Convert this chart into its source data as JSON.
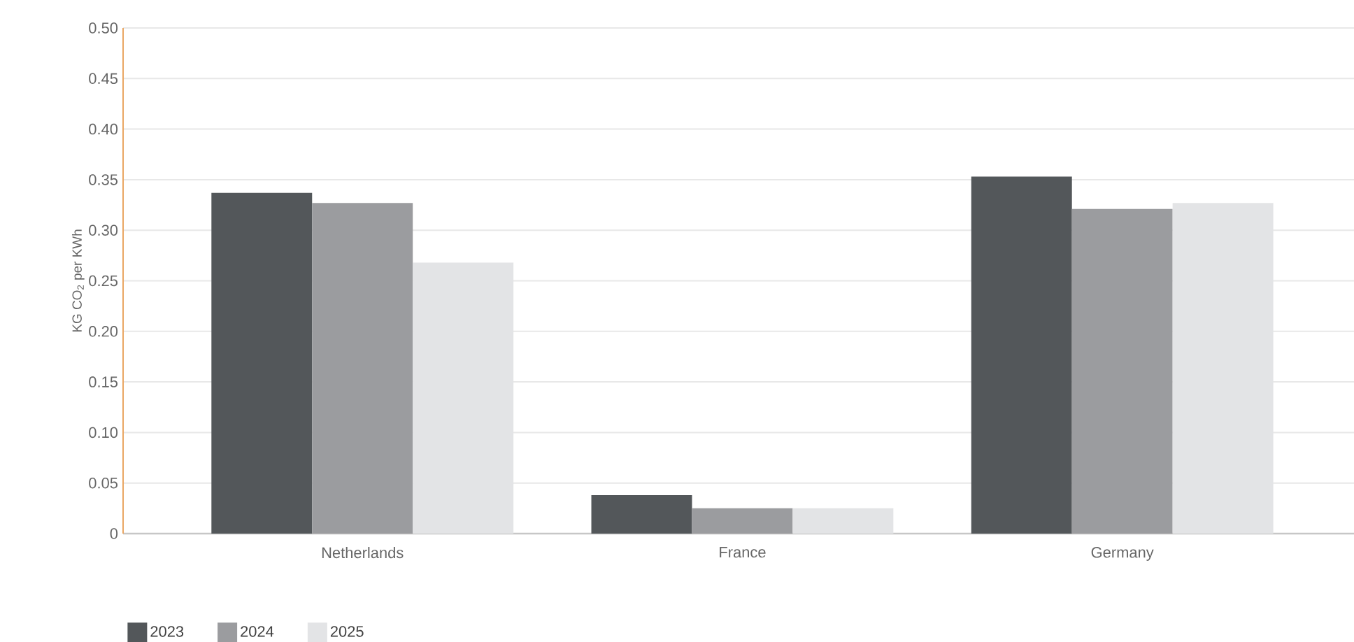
{
  "chart_data": {
    "type": "bar",
    "ylabel": "KG CO$_{2}$ per KWh",
    "categories": [
      "Netherlands",
      "France",
      "Germany"
    ],
    "series": [
      {
        "name": "2023",
        "color": "#53575a",
        "values": [
          0.337,
          0.038,
          0.353
        ]
      },
      {
        "name": "2024",
        "color": "#9b9c9f",
        "values": [
          0.327,
          0.025,
          0.321
        ]
      },
      {
        "name": "2025",
        "color": "#e3e4e6",
        "values": [
          0.268,
          0.025,
          0.327
        ]
      }
    ],
    "ylim": [
      0,
      0.5
    ],
    "yticks": [
      0,
      0.05,
      {
        "value": 0.1,
        "label": "0.10"
      },
      0.15,
      {
        "value": 0.2,
        "label": "0.20"
      },
      0.25,
      {
        "value": 0.3,
        "label": "0.30"
      },
      0.35,
      {
        "value": 0.4,
        "label": "0.40"
      },
      0.45,
      {
        "value": 0.5,
        "label": "0.50"
      }
    ],
    "grid": "y",
    "legend": "bottom left"
  }
}
